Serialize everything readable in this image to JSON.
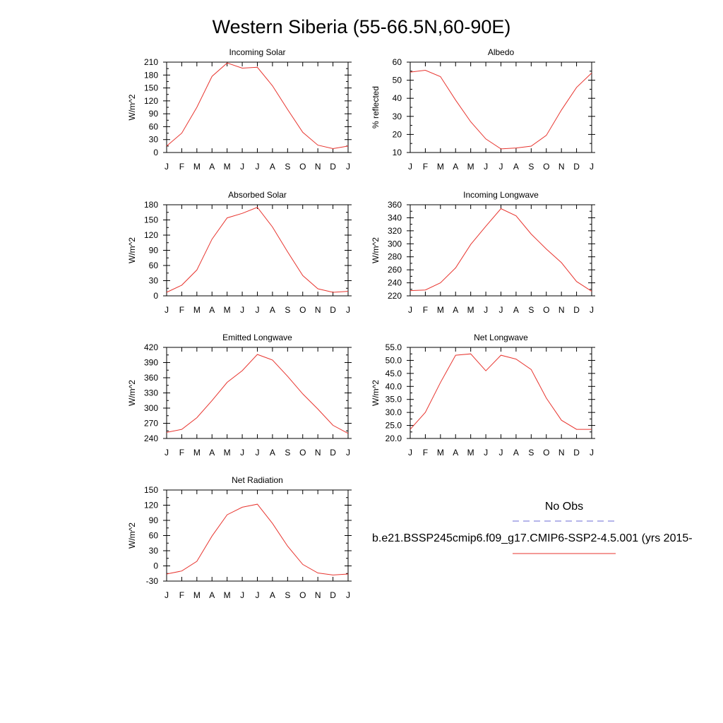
{
  "figure": {
    "title": "Western Siberia (55-66.5N,60-90E)"
  },
  "legend": {
    "obs_label": "No Obs",
    "obs_color": "#6b6bd6",
    "model_label": "b.e21.BSSP245cmip6.f09_g17.CMIP6-SSP2-4.5.001 (yrs 2015-",
    "model_color": "#e8352f"
  },
  "chart_data": [
    {
      "type": "line",
      "title": "Incoming Solar",
      "ylabel": "W/m^2",
      "xlabel": "",
      "categories": [
        "J",
        "F",
        "M",
        "A",
        "M",
        "J",
        "J",
        "A",
        "S",
        "O",
        "N",
        "D",
        "J"
      ],
      "yticks": [
        "0",
        "30",
        "60",
        "90",
        "120",
        "150",
        "180",
        "210"
      ],
      "ylim": [
        0,
        210
      ],
      "series": [
        {
          "color": "#e8352f",
          "values": [
            15,
            45,
            105,
            177,
            208,
            196,
            198,
            155,
            100,
            47,
            17,
            9,
            15
          ]
        }
      ]
    },
    {
      "type": "line",
      "title": "Albedo",
      "ylabel": "% reflected",
      "xlabel": "",
      "categories": [
        "J",
        "F",
        "M",
        "A",
        "M",
        "J",
        "J",
        "A",
        "S",
        "O",
        "N",
        "D",
        "J"
      ],
      "yticks": [
        "10",
        "20",
        "30",
        "40",
        "50",
        "60"
      ],
      "ylim": [
        10,
        60
      ],
      "series": [
        {
          "color": "#e8352f",
          "values": [
            54.5,
            55.5,
            52,
            39,
            27,
            17.5,
            12,
            12.5,
            13.5,
            19.5,
            33.5,
            46,
            54
          ]
        }
      ]
    },
    {
      "type": "line",
      "title": "Absorbed Solar",
      "ylabel": "W/m^2",
      "xlabel": "",
      "categories": [
        "J",
        "F",
        "M",
        "A",
        "M",
        "J",
        "J",
        "A",
        "S",
        "O",
        "N",
        "D",
        "J"
      ],
      "yticks": [
        "0",
        "30",
        "60",
        "90",
        "120",
        "150",
        "180"
      ],
      "ylim": [
        0,
        180
      ],
      "series": [
        {
          "color": "#e8352f",
          "values": [
            7,
            21,
            51,
            112,
            154,
            163,
            175,
            136,
            87,
            40,
            14,
            7,
            9
          ]
        }
      ]
    },
    {
      "type": "line",
      "title": "Incoming Longwave",
      "ylabel": "W/m^2",
      "xlabel": "",
      "categories": [
        "J",
        "F",
        "M",
        "A",
        "M",
        "J",
        "J",
        "A",
        "S",
        "O",
        "N",
        "D",
        "J"
      ],
      "yticks": [
        "220",
        "240",
        "260",
        "280",
        "300",
        "320",
        "340",
        "360"
      ],
      "ylim": [
        220,
        360
      ],
      "series": [
        {
          "color": "#e8352f",
          "values": [
            228,
            229,
            240,
            263,
            299,
            327,
            354,
            343,
            315,
            292,
            271,
            242,
            227
          ]
        }
      ]
    },
    {
      "type": "line",
      "title": "Emitted Longwave",
      "ylabel": "W/m^2",
      "xlabel": "",
      "categories": [
        "J",
        "F",
        "M",
        "A",
        "M",
        "J",
        "J",
        "A",
        "S",
        "O",
        "N",
        "D",
        "J"
      ],
      "yticks": [
        "240",
        "270",
        "300",
        "330",
        "360",
        "390",
        "420"
      ],
      "ylim": [
        240,
        420
      ],
      "series": [
        {
          "color": "#e8352f",
          "values": [
            252,
            258,
            281,
            315,
            351,
            374,
            406,
            395,
            363,
            328,
            298,
            266,
            250
          ]
        }
      ]
    },
    {
      "type": "line",
      "title": "Net Longwave",
      "ylabel": "W/m^2",
      "xlabel": "",
      "categories": [
        "J",
        "F",
        "M",
        "A",
        "M",
        "J",
        "J",
        "A",
        "S",
        "O",
        "N",
        "D",
        "J"
      ],
      "yticks": [
        "20.0",
        "25.0",
        "30.0",
        "35.0",
        "40.0",
        "45.0",
        "50.0",
        "55.0"
      ],
      "ylim": [
        20,
        55
      ],
      "series": [
        {
          "color": "#e8352f",
          "values": [
            23.5,
            30,
            41.5,
            52,
            52.5,
            46,
            52,
            50.5,
            46.5,
            35.5,
            27,
            23.5,
            23.5
          ]
        }
      ]
    },
    {
      "type": "line",
      "title": "Net Radiation",
      "ylabel": "W/m^2",
      "xlabel": "",
      "categories": [
        "J",
        "F",
        "M",
        "A",
        "M",
        "J",
        "J",
        "A",
        "S",
        "O",
        "N",
        "D",
        "J"
      ],
      "yticks": [
        "-30",
        "0",
        "30",
        "60",
        "90",
        "120",
        "150"
      ],
      "ylim": [
        -30,
        150
      ],
      "series": [
        {
          "color": "#e8352f",
          "values": [
            -16,
            -10,
            9,
            59,
            101,
            116,
            122,
            84,
            39,
            3,
            -14,
            -18,
            -16
          ]
        }
      ]
    }
  ]
}
